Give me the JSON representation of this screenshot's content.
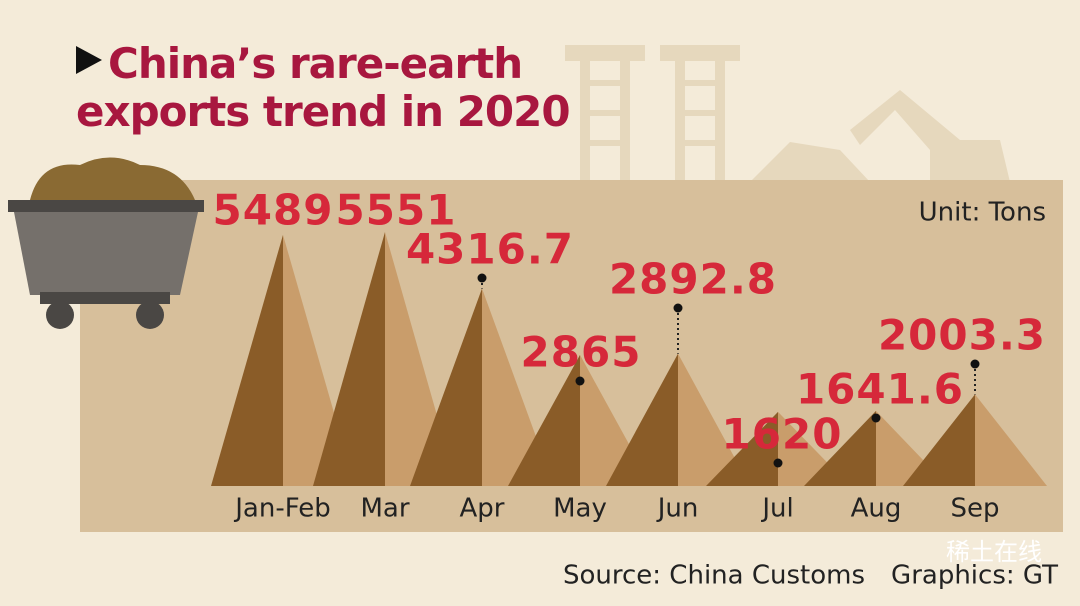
{
  "chart_data": {
    "type": "triangle-bar",
    "title": "China’s rare-earth exports trend in 2020",
    "unit": "Unit: Tons",
    "categories": [
      "Jan-Feb",
      "Mar",
      "Apr",
      "May",
      "Jun",
      "Jul",
      "Aug",
      "Sep"
    ],
    "values": [
      5489,
      5551,
      4316.7,
      2865,
      2892.8,
      1620,
      1641.6,
      2003.3
    ],
    "colors": [
      "#8a5c28",
      "#c99d6b"
    ],
    "source": "Source: China Customs",
    "credit": "Graphics: GT",
    "watermark": "稀土在线"
  }
}
